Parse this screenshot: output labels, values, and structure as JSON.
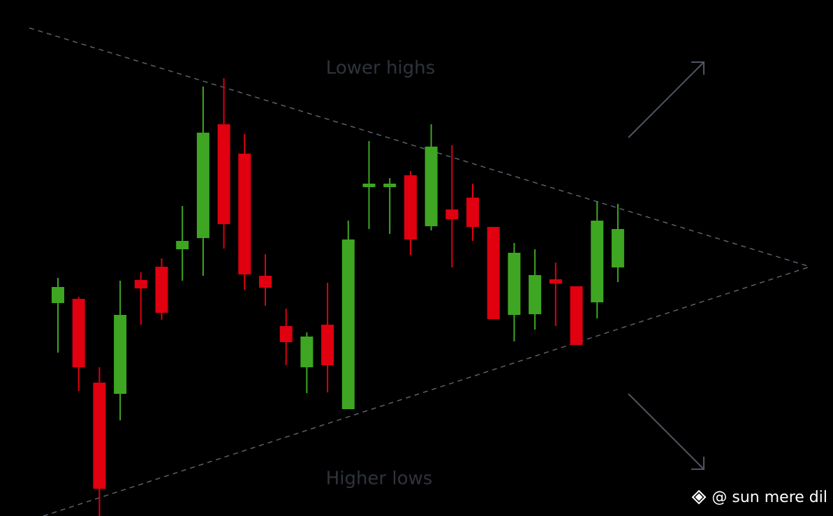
{
  "chart_data": {
    "type": "candlestick",
    "annotations": [
      "Lower highs",
      "Higher lows"
    ],
    "watermark": "@ sun mere dil",
    "up_color": "#3ea622",
    "down_color": "#e0000f",
    "ylim": [
      0,
      739
    ],
    "open": [
      305,
      311,
      191,
      175,
      338,
      357,
      382,
      398,
      561,
      519,
      344,
      272,
      213,
      274,
      153,
      471,
      471,
      488,
      415,
      439,
      456,
      414,
      288,
      289,
      339,
      329,
      306,
      356
    ],
    "high": [
      341,
      314,
      213,
      337,
      349,
      369,
      444,
      615,
      627,
      547,
      375,
      297,
      263,
      334,
      423,
      537,
      484,
      494,
      561,
      531,
      476,
      414,
      391,
      382,
      363,
      329,
      451,
      447
    ],
    "low": [
      234,
      179,
      0,
      137,
      274,
      281,
      337,
      344,
      383,
      324,
      301,
      216,
      176,
      177,
      153,
      411,
      404,
      374,
      409,
      356,
      394,
      282,
      250,
      267,
      272,
      245,
      283,
      335
    ],
    "close": [
      328,
      213,
      39,
      288,
      326,
      291,
      394,
      549,
      418,
      346,
      327,
      249,
      257,
      216,
      396,
      476,
      476,
      396,
      529,
      425,
      414,
      282,
      377,
      345,
      333,
      245,
      423,
      411
    ]
  }
}
